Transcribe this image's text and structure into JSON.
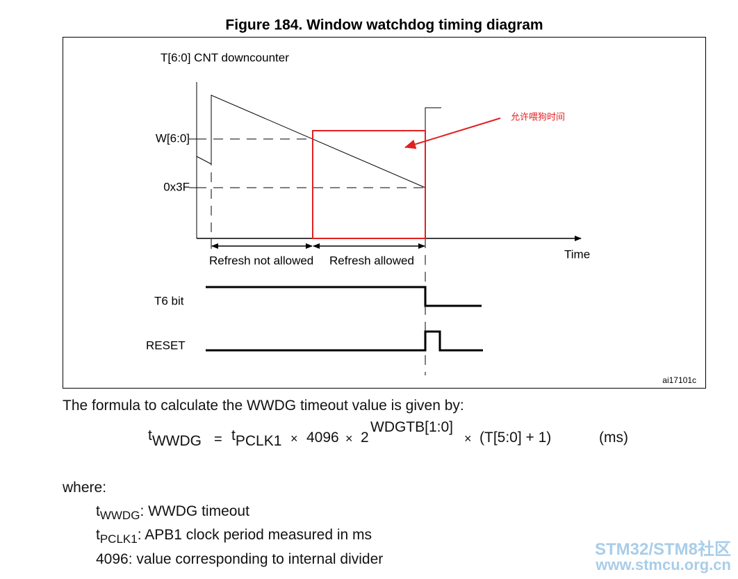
{
  "figure": {
    "title": "Figure 184. Window watchdog timing diagram",
    "y_axis_label": "T[6:0] CNT downcounter",
    "levels": [
      "W[6:0]",
      "0x3F"
    ],
    "x_axis_label": "Time",
    "regions": [
      "Refresh not allowed",
      "Refresh allowed"
    ],
    "signals": [
      "T6 bit",
      "RESET"
    ],
    "annotation": "允许喂狗时间",
    "figure_id": "ai17101c"
  },
  "text": {
    "intro": "The formula to calculate the WWDG timeout value is given by:",
    "formula": [
      "t",
      "WWDG",
      "=",
      "t",
      "PCLK1",
      "×",
      "4096",
      "×",
      "2",
      "WDGTB[1:0]",
      "×",
      "(T[5:0] + 1)",
      "(ms)"
    ],
    "where": "where:",
    "definitions": [
      {
        "symbol": "t",
        "subscript": "WWDG",
        "text": ": WWDG timeout"
      },
      {
        "symbol": "t",
        "subscript": "PCLK1",
        "text": ": APB1 clock period measured in ms"
      },
      {
        "symbol": "4096",
        "text": ": value corresponding to internal divider"
      }
    ]
  },
  "watermark": {
    "line1": "STM32/STM8社区",
    "line2": "www.stmcu.org.cn"
  }
}
